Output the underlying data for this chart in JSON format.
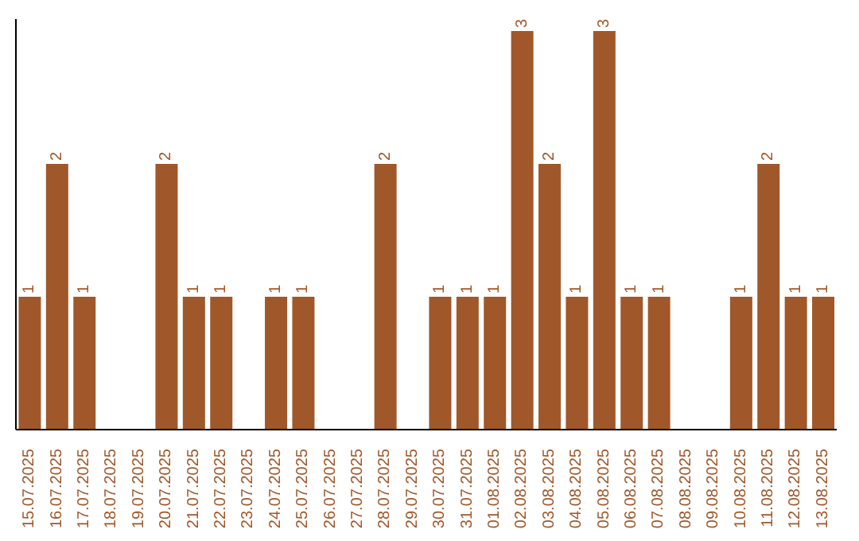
{
  "chart_data": {
    "type": "bar",
    "categories": [
      "15.07.2025",
      "16.07.2025",
      "17.07.2025",
      "18.07.2025",
      "19.07.2025",
      "20.07.2025",
      "21.07.2025",
      "22.07.2025",
      "23.07.2025",
      "24.07.2025",
      "25.07.2025",
      "26.07.2025",
      "27.07.2025",
      "28.07.2025",
      "29.07.2025",
      "30.07.2025",
      "31.07.2025",
      "01.08.2025",
      "02.08.2025",
      "03.08.2025",
      "04.08.2025",
      "05.08.2025",
      "06.08.2025",
      "07.08.2025",
      "08.08.2025",
      "09.08.2025",
      "10.08.2025",
      "11.08.2025",
      "12.08.2025",
      "13.08.2025"
    ],
    "values": [
      1,
      2,
      1,
      0,
      0,
      2,
      1,
      1,
      0,
      1,
      1,
      0,
      0,
      2,
      0,
      1,
      1,
      1,
      3,
      2,
      1,
      3,
      1,
      1,
      0,
      0,
      1,
      2,
      1,
      1
    ],
    "value_labels": [
      "1",
      "2",
      "1",
      null,
      null,
      "2",
      "1",
      "1",
      null,
      "1",
      "1",
      null,
      null,
      "2",
      null,
      "1",
      "1",
      "1",
      "3",
      "2",
      "1",
      "3",
      "1",
      "1",
      null,
      null,
      "1",
      "2",
      "1",
      "1"
    ],
    "color": "#a0582a",
    "tick_labels": "x"
  }
}
